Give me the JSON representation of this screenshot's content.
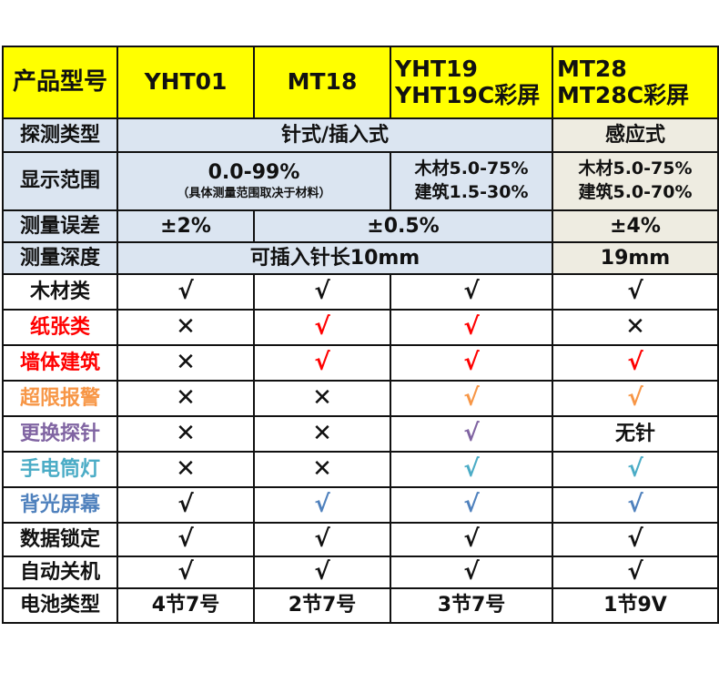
{
  "header": {
    "label": "产品型号",
    "col1": "YHT01",
    "col2": "MT18",
    "col3": [
      "YHT19",
      "YHT19C彩屏"
    ],
    "col4": [
      "MT28",
      "MT28C彩屏"
    ]
  },
  "probe_type": {
    "label": "探测类型",
    "pin": "针式/插入式",
    "induction": "感应式"
  },
  "display_range": {
    "label": "显示范围",
    "main": "0.0-99%",
    "note": "（具体测量范围取决于材料）",
    "col3": [
      "木材5.0-75%",
      "建筑1.5-30%"
    ],
    "col4": [
      "木材5.0-75%",
      "建筑5.0-70%"
    ]
  },
  "error": {
    "label": "测量误差",
    "col1": "±2%",
    "col23": "±0.5%",
    "col4": "±4%"
  },
  "depth": {
    "label": "测量深度",
    "pin": "可插入针长10mm",
    "col4": "19mm"
  },
  "feature_rows": [
    {
      "label": "木材类",
      "color": "#111111",
      "cells": [
        {
          "v": "√",
          "c": "#111111"
        },
        {
          "v": "√",
          "c": "#111111"
        },
        {
          "v": "√",
          "c": "#111111"
        },
        {
          "v": "√",
          "c": "#111111"
        }
      ]
    },
    {
      "label": "纸张类",
      "color": "#ff0000",
      "cells": [
        {
          "v": "✕",
          "c": "#111111"
        },
        {
          "v": "√",
          "c": "#ff0000"
        },
        {
          "v": "√",
          "c": "#ff0000"
        },
        {
          "v": "✕",
          "c": "#111111"
        }
      ]
    },
    {
      "label": "墙体建筑",
      "color": "#ff0000",
      "cells": [
        {
          "v": "✕",
          "c": "#111111"
        },
        {
          "v": "√",
          "c": "#ff0000"
        },
        {
          "v": "√",
          "c": "#ff0000"
        },
        {
          "v": "√",
          "c": "#ff0000"
        }
      ]
    },
    {
      "label": "超限报警",
      "color": "#f79646",
      "cells": [
        {
          "v": "✕",
          "c": "#111111"
        },
        {
          "v": "✕",
          "c": "#111111"
        },
        {
          "v": "√",
          "c": "#f79646"
        },
        {
          "v": "√",
          "c": "#f79646"
        }
      ]
    },
    {
      "label": "更换探针",
      "color": "#8064a2",
      "cells": [
        {
          "v": "✕",
          "c": "#111111"
        },
        {
          "v": "✕",
          "c": "#111111"
        },
        {
          "v": "√",
          "c": "#8064a2"
        },
        {
          "v": "无针",
          "c": "#111111"
        }
      ]
    },
    {
      "label": "手电筒灯",
      "color": "#4bacc6",
      "cells": [
        {
          "v": "✕",
          "c": "#111111"
        },
        {
          "v": "✕",
          "c": "#111111"
        },
        {
          "v": "√",
          "c": "#4bacc6"
        },
        {
          "v": "√",
          "c": "#4bacc6"
        }
      ]
    },
    {
      "label": "背光屏幕",
      "color": "#4f81bd",
      "cells": [
        {
          "v": "√",
          "c": "#111111"
        },
        {
          "v": "√",
          "c": "#4f81bd"
        },
        {
          "v": "√",
          "c": "#4f81bd"
        },
        {
          "v": "√",
          "c": "#4f81bd"
        }
      ]
    },
    {
      "label": "数据锁定",
      "color": "#111111",
      "cells": [
        {
          "v": "√",
          "c": "#111111"
        },
        {
          "v": "√",
          "c": "#111111"
        },
        {
          "v": "√",
          "c": "#111111"
        },
        {
          "v": "√",
          "c": "#111111"
        }
      ]
    },
    {
      "label": "自动关机",
      "color": "#111111",
      "cells": [
        {
          "v": "√",
          "c": "#111111"
        },
        {
          "v": "√",
          "c": "#111111"
        },
        {
          "v": "√",
          "c": "#111111"
        },
        {
          "v": "√",
          "c": "#111111"
        }
      ]
    }
  ],
  "battery": {
    "label": "电池类型",
    "values": [
      "4节7号",
      "2节7号",
      "3节7号",
      "1节9V"
    ]
  },
  "colors": {
    "header_bg": "#ffff00",
    "blue_bg": "#dbe5f1",
    "cream_bg": "#eeece1"
  }
}
